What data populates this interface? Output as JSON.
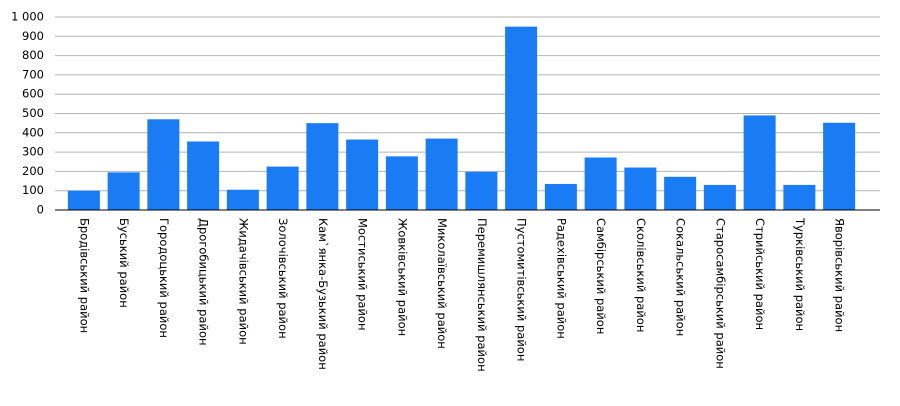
{
  "chart_data": {
    "type": "bar",
    "categories": [
      "Бродівський район",
      "Буський район",
      "Городоцький район",
      "Дрогобицький район",
      "Жидачівський район",
      "Золочівський район",
      "Кам`янка-Бузький район",
      "Мостиський район",
      "Жовківський район",
      "Миколаївський район",
      "Перемишлянський район",
      "Пустомитівський район",
      "Радехівський район",
      "Самбірський район",
      "Сколівський район",
      "Сокальський район",
      "Старосамбірський район",
      "Стрийський район",
      "Турківський район",
      "Яворівський район"
    ],
    "values": [
      100,
      195,
      470,
      355,
      105,
      225,
      450,
      365,
      278,
      370,
      198,
      950,
      135,
      272,
      220,
      172,
      130,
      490,
      130,
      452
    ],
    "color": "#1a7cf5",
    "ylim": [
      0,
      1000
    ],
    "yticks": [
      0,
      100,
      200,
      300,
      400,
      500,
      600,
      700,
      800,
      900,
      {
        "value": 1000,
        "label": "1 000"
      }
    ],
    "grid": true
  }
}
